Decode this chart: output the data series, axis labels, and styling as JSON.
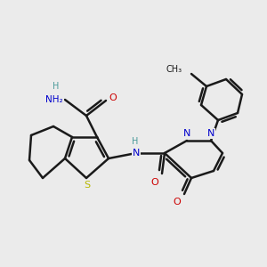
{
  "bg_color": "#ebebeb",
  "bond_color": "#1a1a1a",
  "atom_colors": {
    "N": "#0000cc",
    "O": "#cc0000",
    "S": "#b8b800",
    "H": "#4a9a9a",
    "C": "#1a1a1a"
  },
  "figsize": [
    3.0,
    3.0
  ],
  "dpi": 100
}
